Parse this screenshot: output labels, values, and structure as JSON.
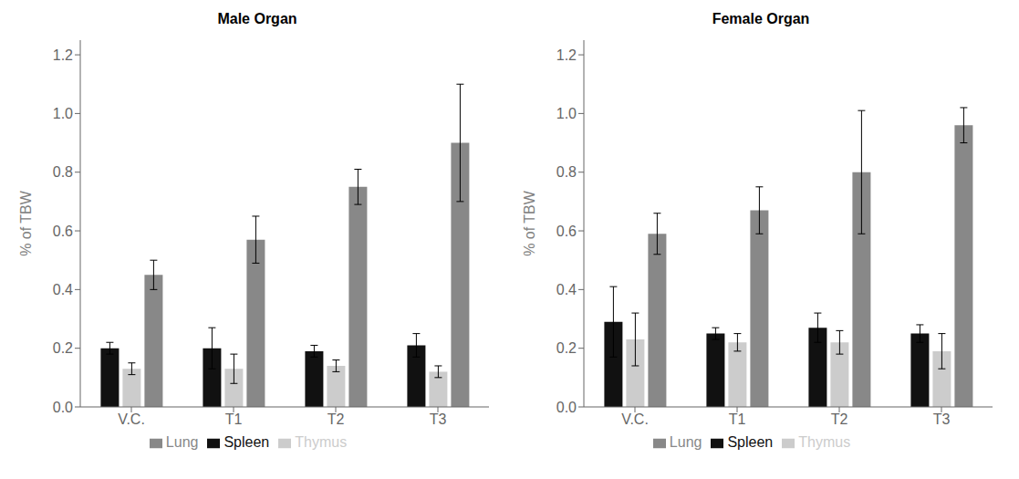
{
  "chart_data": [
    {
      "type": "bar",
      "title": "Male Organ",
      "categories": [
        "V.C.",
        "T1",
        "T2",
        "T3"
      ],
      "series": [
        {
          "name": "Spleen",
          "color": "#111111",
          "values": [
            0.2,
            0.2,
            0.19,
            0.21
          ],
          "errors": [
            0.02,
            0.07,
            0.02,
            0.04
          ]
        },
        {
          "name": "Thymus",
          "color": "#cccccc",
          "values": [
            0.13,
            0.13,
            0.14,
            0.12
          ],
          "errors": [
            0.02,
            0.05,
            0.02,
            0.02
          ]
        },
        {
          "name": "Lung",
          "color": "#888888",
          "values": [
            0.45,
            0.57,
            0.75,
            0.9
          ],
          "errors": [
            0.05,
            0.08,
            0.06,
            0.2
          ]
        }
      ],
      "ylabel": "% of TBW",
      "ylim": [
        0.0,
        1.25
      ],
      "yticks": [
        {
          "value": 0,
          "label": "0.0"
        },
        0.2,
        0.4,
        0.6,
        0.8,
        {
          "value": 1,
          "label": "1.0"
        },
        1.2
      ],
      "grid": false,
      "legend": "bottom"
    },
    {
      "type": "bar",
      "title": "Female Organ",
      "categories": [
        "V.C.",
        "T1",
        "T2",
        "T3"
      ],
      "series": [
        {
          "name": "Spleen",
          "color": "#111111",
          "values": [
            0.29,
            0.25,
            0.27,
            0.25
          ],
          "errors": [
            0.12,
            0.02,
            0.05,
            0.03
          ]
        },
        {
          "name": "Thymus",
          "color": "#cccccc",
          "values": [
            0.23,
            0.22,
            0.22,
            0.19
          ],
          "errors": [
            0.09,
            0.03,
            0.04,
            0.06
          ]
        },
        {
          "name": "Lung",
          "color": "#888888",
          "values": [
            0.59,
            0.67,
            0.8,
            0.96
          ],
          "errors": [
            0.07,
            0.08,
            0.21,
            0.06
          ]
        }
      ],
      "ylabel": "% of TBW",
      "ylim": [
        0.0,
        1.25
      ],
      "yticks": [
        {
          "value": 0,
          "label": "0.0"
        },
        0.2,
        0.4,
        0.6,
        0.8,
        {
          "value": 1,
          "label": "1.0"
        },
        1.2
      ],
      "grid": false,
      "legend": "bottom"
    }
  ]
}
